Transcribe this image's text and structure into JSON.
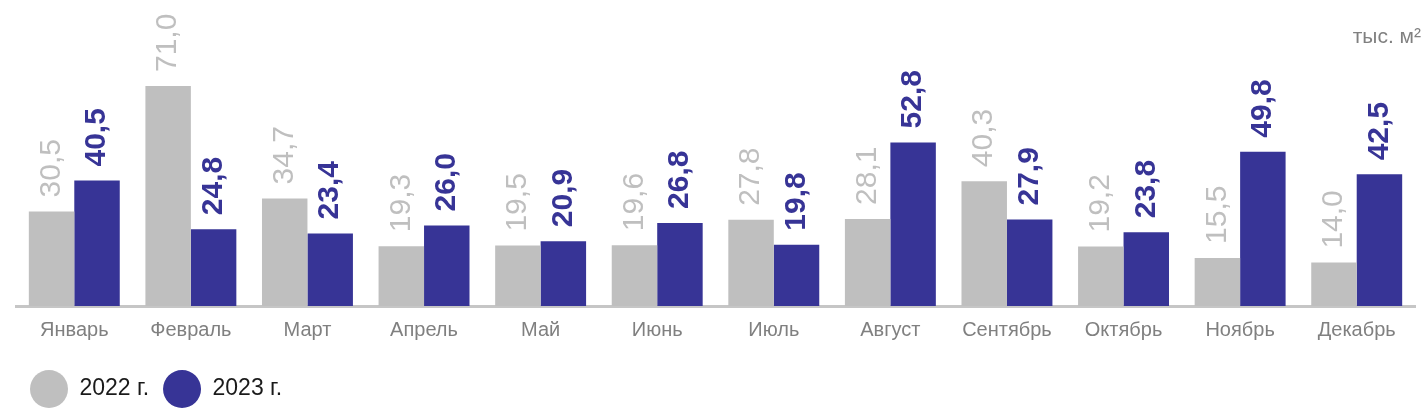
{
  "chart_data": {
    "type": "bar",
    "categories": [
      "Январь",
      "Февраль",
      "Март",
      "Апрель",
      "Май",
      "Июнь",
      "Июль",
      "Август",
      "Сентябрь",
      "Октябрь",
      "Ноябрь",
      "Декабрь"
    ],
    "series": [
      {
        "name": "2022 г.",
        "color": "#bfbfbf",
        "values": [
          30.5,
          71.0,
          34.7,
          19.3,
          19.5,
          19.6,
          27.8,
          28.1,
          40.3,
          19.2,
          15.5,
          14.0
        ],
        "value_labels": [
          "30,5",
          "71,0",
          "34,7",
          "19,3",
          "19,5",
          "19,6",
          "27,8",
          "28,1",
          "40,3",
          "19,2",
          "15,5",
          "14,0"
        ]
      },
      {
        "name": "2023 г.",
        "color": "#373496",
        "values": [
          40.5,
          24.8,
          23.4,
          26.0,
          20.9,
          26.8,
          19.8,
          52.8,
          27.9,
          23.8,
          49.8,
          42.5
        ],
        "value_labels": [
          "40,5",
          "24,8",
          "23,4",
          "26,0",
          "20,9",
          "26,8",
          "19,8",
          "52,8",
          "27,9",
          "23,8",
          "49,8",
          "42,5"
        ]
      }
    ],
    "annotations": [
      "тыс. м²"
    ],
    "legend": "bottom left",
    "tick_labels": "x"
  }
}
